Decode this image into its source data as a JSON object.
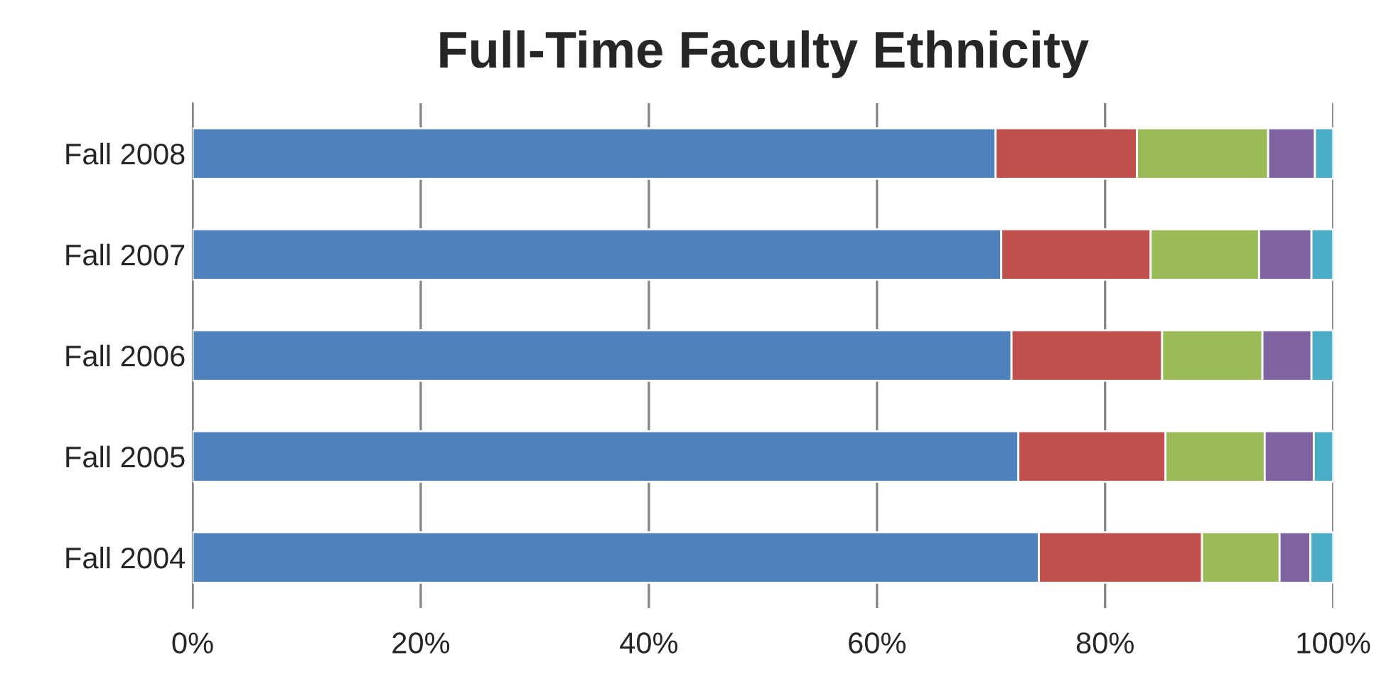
{
  "chart_data": {
    "type": "bar",
    "title": "Full-Time Faculty Ethnicity",
    "orientation": "horizontal",
    "stacked": true,
    "categories": [
      "Fall 2008",
      "Fall 2007",
      "Fall 2006",
      "Fall 2005",
      "Fall 2004"
    ],
    "series": [
      {
        "color": "#4f81bd",
        "values": [
          70.4,
          70.9,
          71.8,
          72.4,
          74.2
        ]
      },
      {
        "color": "#c0504d",
        "values": [
          12.4,
          13.1,
          13.2,
          12.9,
          14.3
        ]
      },
      {
        "color": "#9bbb59",
        "values": [
          11.5,
          9.5,
          8.8,
          8.7,
          6.8
        ]
      },
      {
        "color": "#8064a2",
        "values": [
          4.1,
          4.6,
          4.3,
          4.3,
          2.7
        ]
      },
      {
        "color": "#4bacc6",
        "values": [
          1.6,
          1.9,
          1.9,
          1.7,
          2.0
        ]
      }
    ],
    "xlim": [
      0,
      100
    ],
    "xticks": [
      {
        "value": 0,
        "label": "0%"
      },
      {
        "value": 20,
        "label": "20%"
      },
      {
        "value": 40,
        "label": "40%"
      },
      {
        "value": 60,
        "label": "60%"
      },
      {
        "value": 80,
        "label": "80%"
      },
      {
        "value": 100,
        "label": "100%"
      }
    ],
    "grid": "x",
    "legend": false
  }
}
